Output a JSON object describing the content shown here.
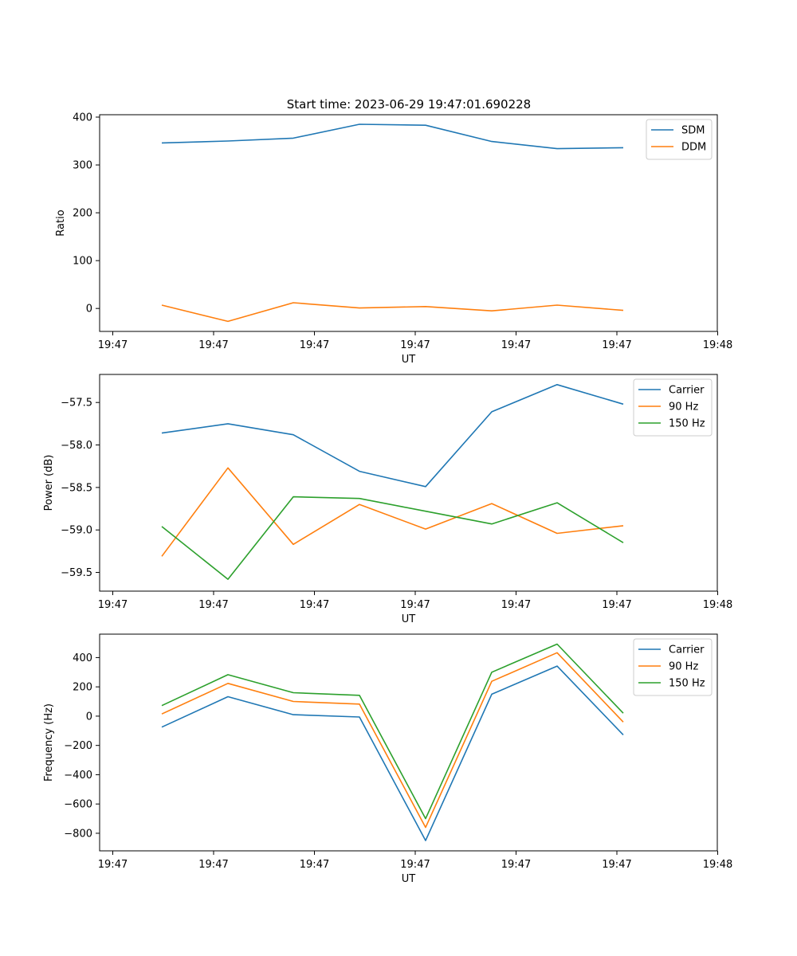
{
  "title": "Start time: 2023-06-29 19:47:01.690228",
  "colors": {
    "blue": "#1f77b4",
    "orange": "#ff7f0e",
    "green": "#2ca02c"
  },
  "chart_data": [
    {
      "type": "line",
      "title": "Start time: 2023-06-29 19:47:01.690228",
      "xlabel": "UT",
      "ylabel": "Ratio",
      "x_ticks": [
        "19:47",
        "19:47",
        "19:47",
        "19:47",
        "19:47",
        "19:47",
        "19:48"
      ],
      "y_ticks": [
        "0",
        "100",
        "200",
        "300",
        "400"
      ],
      "ylim": [
        -48,
        405
      ],
      "grid": false,
      "legend": "top-right",
      "series": [
        {
          "name": "SDM",
          "color": "#1f77b4",
          "values": [
            346,
            350,
            356,
            385,
            383,
            349,
            334,
            336
          ]
        },
        {
          "name": "DDM",
          "color": "#ff7f0e",
          "values": [
            7,
            -27,
            12,
            1,
            4,
            -5,
            7,
            -4
          ]
        }
      ]
    },
    {
      "type": "line",
      "title": "",
      "xlabel": "UT",
      "ylabel": "Power (dB)",
      "x_ticks": [
        "19:47",
        "19:47",
        "19:47",
        "19:47",
        "19:47",
        "19:47",
        "19:48"
      ],
      "y_ticks": [
        "−57.5",
        "−58.0",
        "−58.5",
        "−59.0",
        "−59.5"
      ],
      "y_tick_values": [
        -57.5,
        -58.0,
        -58.5,
        -59.0,
        -59.5
      ],
      "ylim": [
        -59.72,
        -57.17
      ],
      "grid": false,
      "legend": "top-right",
      "series": [
        {
          "name": "Carrier",
          "color": "#1f77b4",
          "values": [
            -57.86,
            -57.75,
            -57.88,
            -58.31,
            -58.49,
            -57.61,
            -57.29,
            -57.52
          ]
        },
        {
          "name": "90 Hz",
          "color": "#ff7f0e",
          "values": [
            -59.31,
            -58.27,
            -59.17,
            -58.7,
            -58.99,
            -58.69,
            -59.04,
            -58.95
          ]
        },
        {
          "name": "150 Hz",
          "color": "#2ca02c",
          "values": [
            -58.96,
            -59.58,
            -58.61,
            -58.63,
            -58.78,
            -58.93,
            -58.68,
            -59.15
          ]
        }
      ]
    },
    {
      "type": "line",
      "title": "",
      "xlabel": "UT",
      "ylabel": "Frequency (Hz)",
      "x_ticks": [
        "19:47",
        "19:47",
        "19:47",
        "19:47",
        "19:47",
        "19:47",
        "19:48"
      ],
      "y_ticks": [
        "−800",
        "−600",
        "−400",
        "−200",
        "0",
        "200",
        "400"
      ],
      "y_tick_values": [
        -800,
        -600,
        -400,
        -200,
        0,
        200,
        400
      ],
      "ylim": [
        -920,
        560
      ],
      "grid": false,
      "legend": "top-right",
      "series": [
        {
          "name": "Carrier",
          "color": "#1f77b4",
          "values": [
            -75,
            133,
            10,
            -6,
            -850,
            150,
            342,
            -128
          ]
        },
        {
          "name": "90 Hz",
          "color": "#ff7f0e",
          "values": [
            15,
            224,
            100,
            82,
            -760,
            238,
            433,
            -40
          ]
        },
        {
          "name": "150 Hz",
          "color": "#2ca02c",
          "values": [
            72,
            283,
            160,
            142,
            -700,
            300,
            492,
            20
          ]
        }
      ]
    }
  ]
}
